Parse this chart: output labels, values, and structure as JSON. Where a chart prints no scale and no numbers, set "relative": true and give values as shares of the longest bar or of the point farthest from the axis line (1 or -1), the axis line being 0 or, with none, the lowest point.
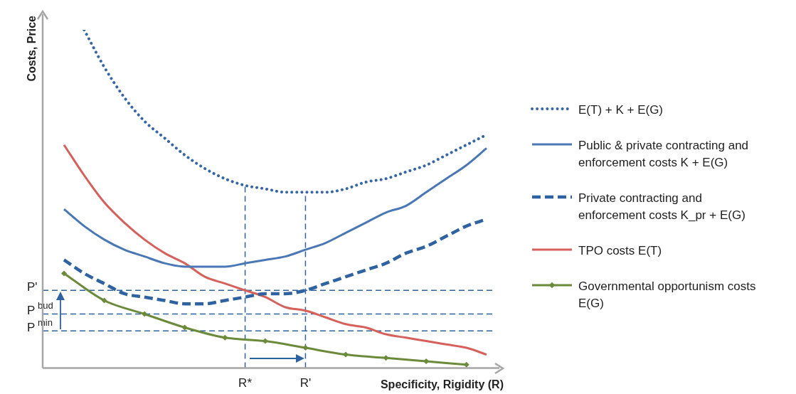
{
  "chart_data": {
    "type": "line",
    "relative": true,
    "xlabel": "Specificity, Rigidity (R)",
    "ylabel": "Costs, Price",
    "legend": "right",
    "categories": [
      null,
      null,
      null,
      null,
      null,
      null,
      null,
      null,
      null,
      "R*",
      null,
      null,
      "R'",
      null,
      null,
      null,
      null,
      null,
      null,
      null,
      null,
      null
    ],
    "series": [
      {
        "name": "E(T) + K + E(G)",
        "color": "#3566a8",
        "line_style": "dotted",
        "marker": "none",
        "values": [
          null,
          1,
          0.89,
          0.8,
          0.73,
          0.68,
          0.63,
          0.59,
          0.56,
          0.54,
          0.53,
          0.52,
          0.52,
          0.52,
          0.53,
          0.55,
          0.56,
          0.58,
          0.6,
          0.63,
          0.66,
          0.69
        ]
      },
      {
        "name": "Public & private contracting and enforcement costs K + E(G)",
        "color": "#4a78b4",
        "line_style": "solid",
        "marker": "none",
        "values": [
          0.47,
          0.42,
          0.38,
          0.35,
          0.33,
          0.31,
          0.3,
          0.3,
          0.3,
          0.31,
          0.32,
          0.33,
          0.35,
          0.37,
          0.4,
          0.43,
          0.46,
          0.48,
          0.52,
          0.56,
          0.6,
          0.65
        ]
      },
      {
        "name": "Private contracting and enforcement costs K_pr + E(G)",
        "color": "#2e62a0",
        "line_style": "dashed",
        "marker": "none",
        "values": [
          0.32,
          0.28,
          0.25,
          0.22,
          0.21,
          0.2,
          0.19,
          0.19,
          0.2,
          0.21,
          0.22,
          0.22,
          0.23,
          0.25,
          0.27,
          0.29,
          0.31,
          0.34,
          0.36,
          0.39,
          0.42,
          0.44
        ]
      },
      {
        "name": "TPO costs E(T)",
        "color": "#d6605a",
        "line_style": "solid",
        "marker": "none",
        "values": [
          0.66,
          0.57,
          0.49,
          0.43,
          0.38,
          0.34,
          0.31,
          0.27,
          0.25,
          0.23,
          0.21,
          0.18,
          0.17,
          0.15,
          0.13,
          0.12,
          0.1,
          0.09,
          0.08,
          0.07,
          0.06,
          0.04
        ]
      },
      {
        "name": "Governmental opportunism costs E(G)",
        "color": "#6b8a3a",
        "line_style": "solid",
        "marker": "diamond",
        "values": [
          0.28,
          null,
          0.2,
          null,
          0.16,
          null,
          0.12,
          null,
          0.09,
          null,
          0.08,
          null,
          0.06,
          null,
          0.04,
          null,
          0.03,
          null,
          0.02,
          null,
          0.01,
          null
        ]
      }
    ],
    "ref_lines": [
      {
        "axis": "y",
        "value": 0.23,
        "label": "P'",
        "color": "#2e62a0",
        "line_style": "dashed"
      },
      {
        "axis": "y",
        "value": 0.16,
        "label": "P$^{bud}$",
        "color": "#2e62a0",
        "line_style": "dashed"
      },
      {
        "axis": "y",
        "value": 0.11,
        "label": "P$^{min}$",
        "color": "#2e62a0",
        "line_style": "dashed"
      },
      {
        "axis": "x",
        "value": "R*",
        "color": "#2e62a0",
        "line_style": "dashed"
      },
      {
        "axis": "x",
        "value": "R'",
        "color": "#2e62a0",
        "line_style": "dashed"
      }
    ]
  }
}
